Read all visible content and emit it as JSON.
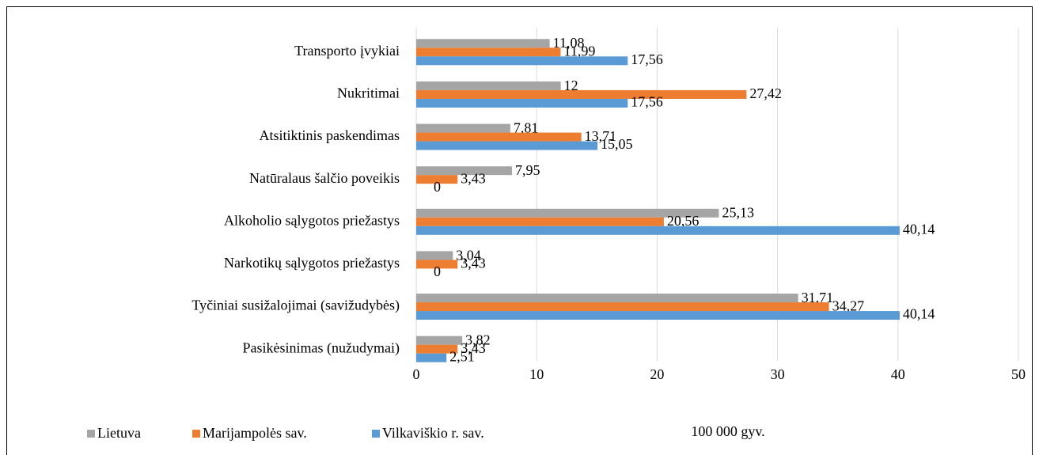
{
  "chart_data": {
    "type": "bar",
    "orientation": "horizontal",
    "x_label": "100 000 gyv.",
    "categories": [
      "Transporto įvykiai",
      "Nukritimai",
      "Atsitiktinis paskendimas",
      "Natūralaus šalčio poveikis",
      "Alkoholio sąlygotos priežastys",
      "Narkotikų sąlygotos priežastys",
      "Tyčiniai susižalojimai (savižudybės)",
      "Pasikėsinimas (nužudymai)"
    ],
    "series": [
      {
        "name": "Lietuva",
        "color": "#a5a5a5",
        "values": [
          11.08,
          12,
          7.81,
          7.95,
          25.13,
          3.04,
          31.71,
          3.82
        ],
        "value_labels": [
          "11,08",
          "12",
          "7,81",
          "7,95",
          "25,13",
          "3,04",
          "31,71",
          "3,82"
        ]
      },
      {
        "name": "Marijampolės sav.",
        "color": "#ed7d31",
        "values": [
          11.99,
          27.42,
          13.71,
          3.43,
          20.56,
          3.43,
          34.27,
          3.43
        ],
        "value_labels": [
          "11,99",
          "27,42",
          "13,71",
          "3,43",
          "20,56",
          "3,43",
          "34,27",
          "3,43"
        ]
      },
      {
        "name": "Vilkaviškio r.  sav.",
        "color": "#5b9bd5",
        "values": [
          17.56,
          17.56,
          15.05,
          0,
          40.14,
          0,
          40.14,
          2.51
        ],
        "value_labels": [
          "17,56",
          "17,56",
          "15,05",
          "0",
          "40,14",
          "0",
          "40,14",
          "2,51"
        ]
      }
    ],
    "xlim": [
      0,
      50
    ],
    "xticks": [
      0,
      10,
      20,
      30,
      40,
      50
    ],
    "grid": true,
    "legend": "bottom"
  }
}
